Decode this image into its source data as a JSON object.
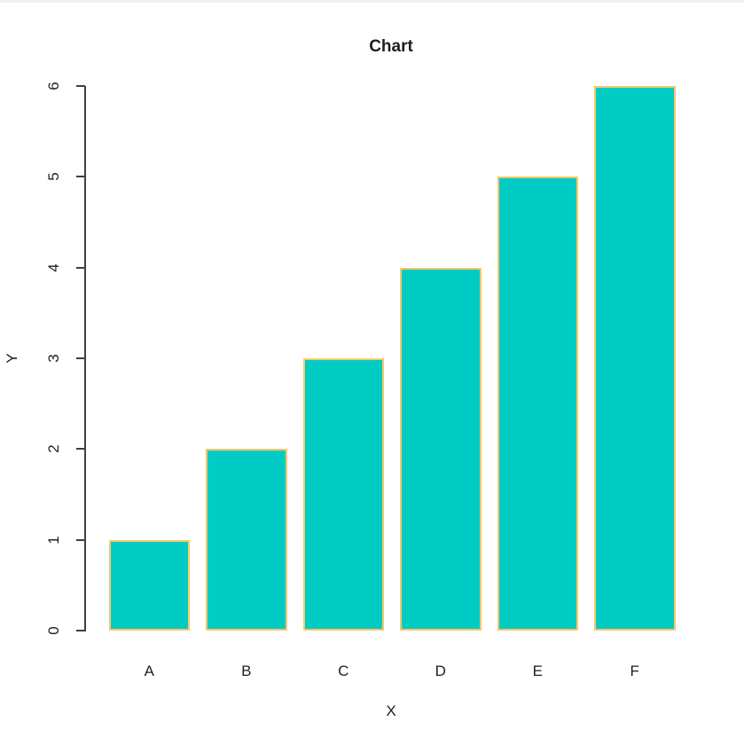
{
  "page": {
    "background": "#ffffff",
    "top_edge_color": "#f0f0f0"
  },
  "chart_data": {
    "type": "bar",
    "title": "Chart",
    "xlabel": "X",
    "ylabel": "Y",
    "categories": [
      "A",
      "B",
      "C",
      "D",
      "E",
      "F"
    ],
    "values": [
      1,
      2,
      3,
      4,
      5,
      6
    ],
    "yticks": [
      0,
      1,
      2,
      3,
      4,
      5,
      6
    ],
    "ylim": [
      0,
      6
    ],
    "grid": false,
    "legend": "none",
    "bar_fill": "#00CCC4",
    "bar_border": "#FFC66B",
    "axis_color": "#3f3f3f",
    "text_color": "#1f1f1f"
  }
}
